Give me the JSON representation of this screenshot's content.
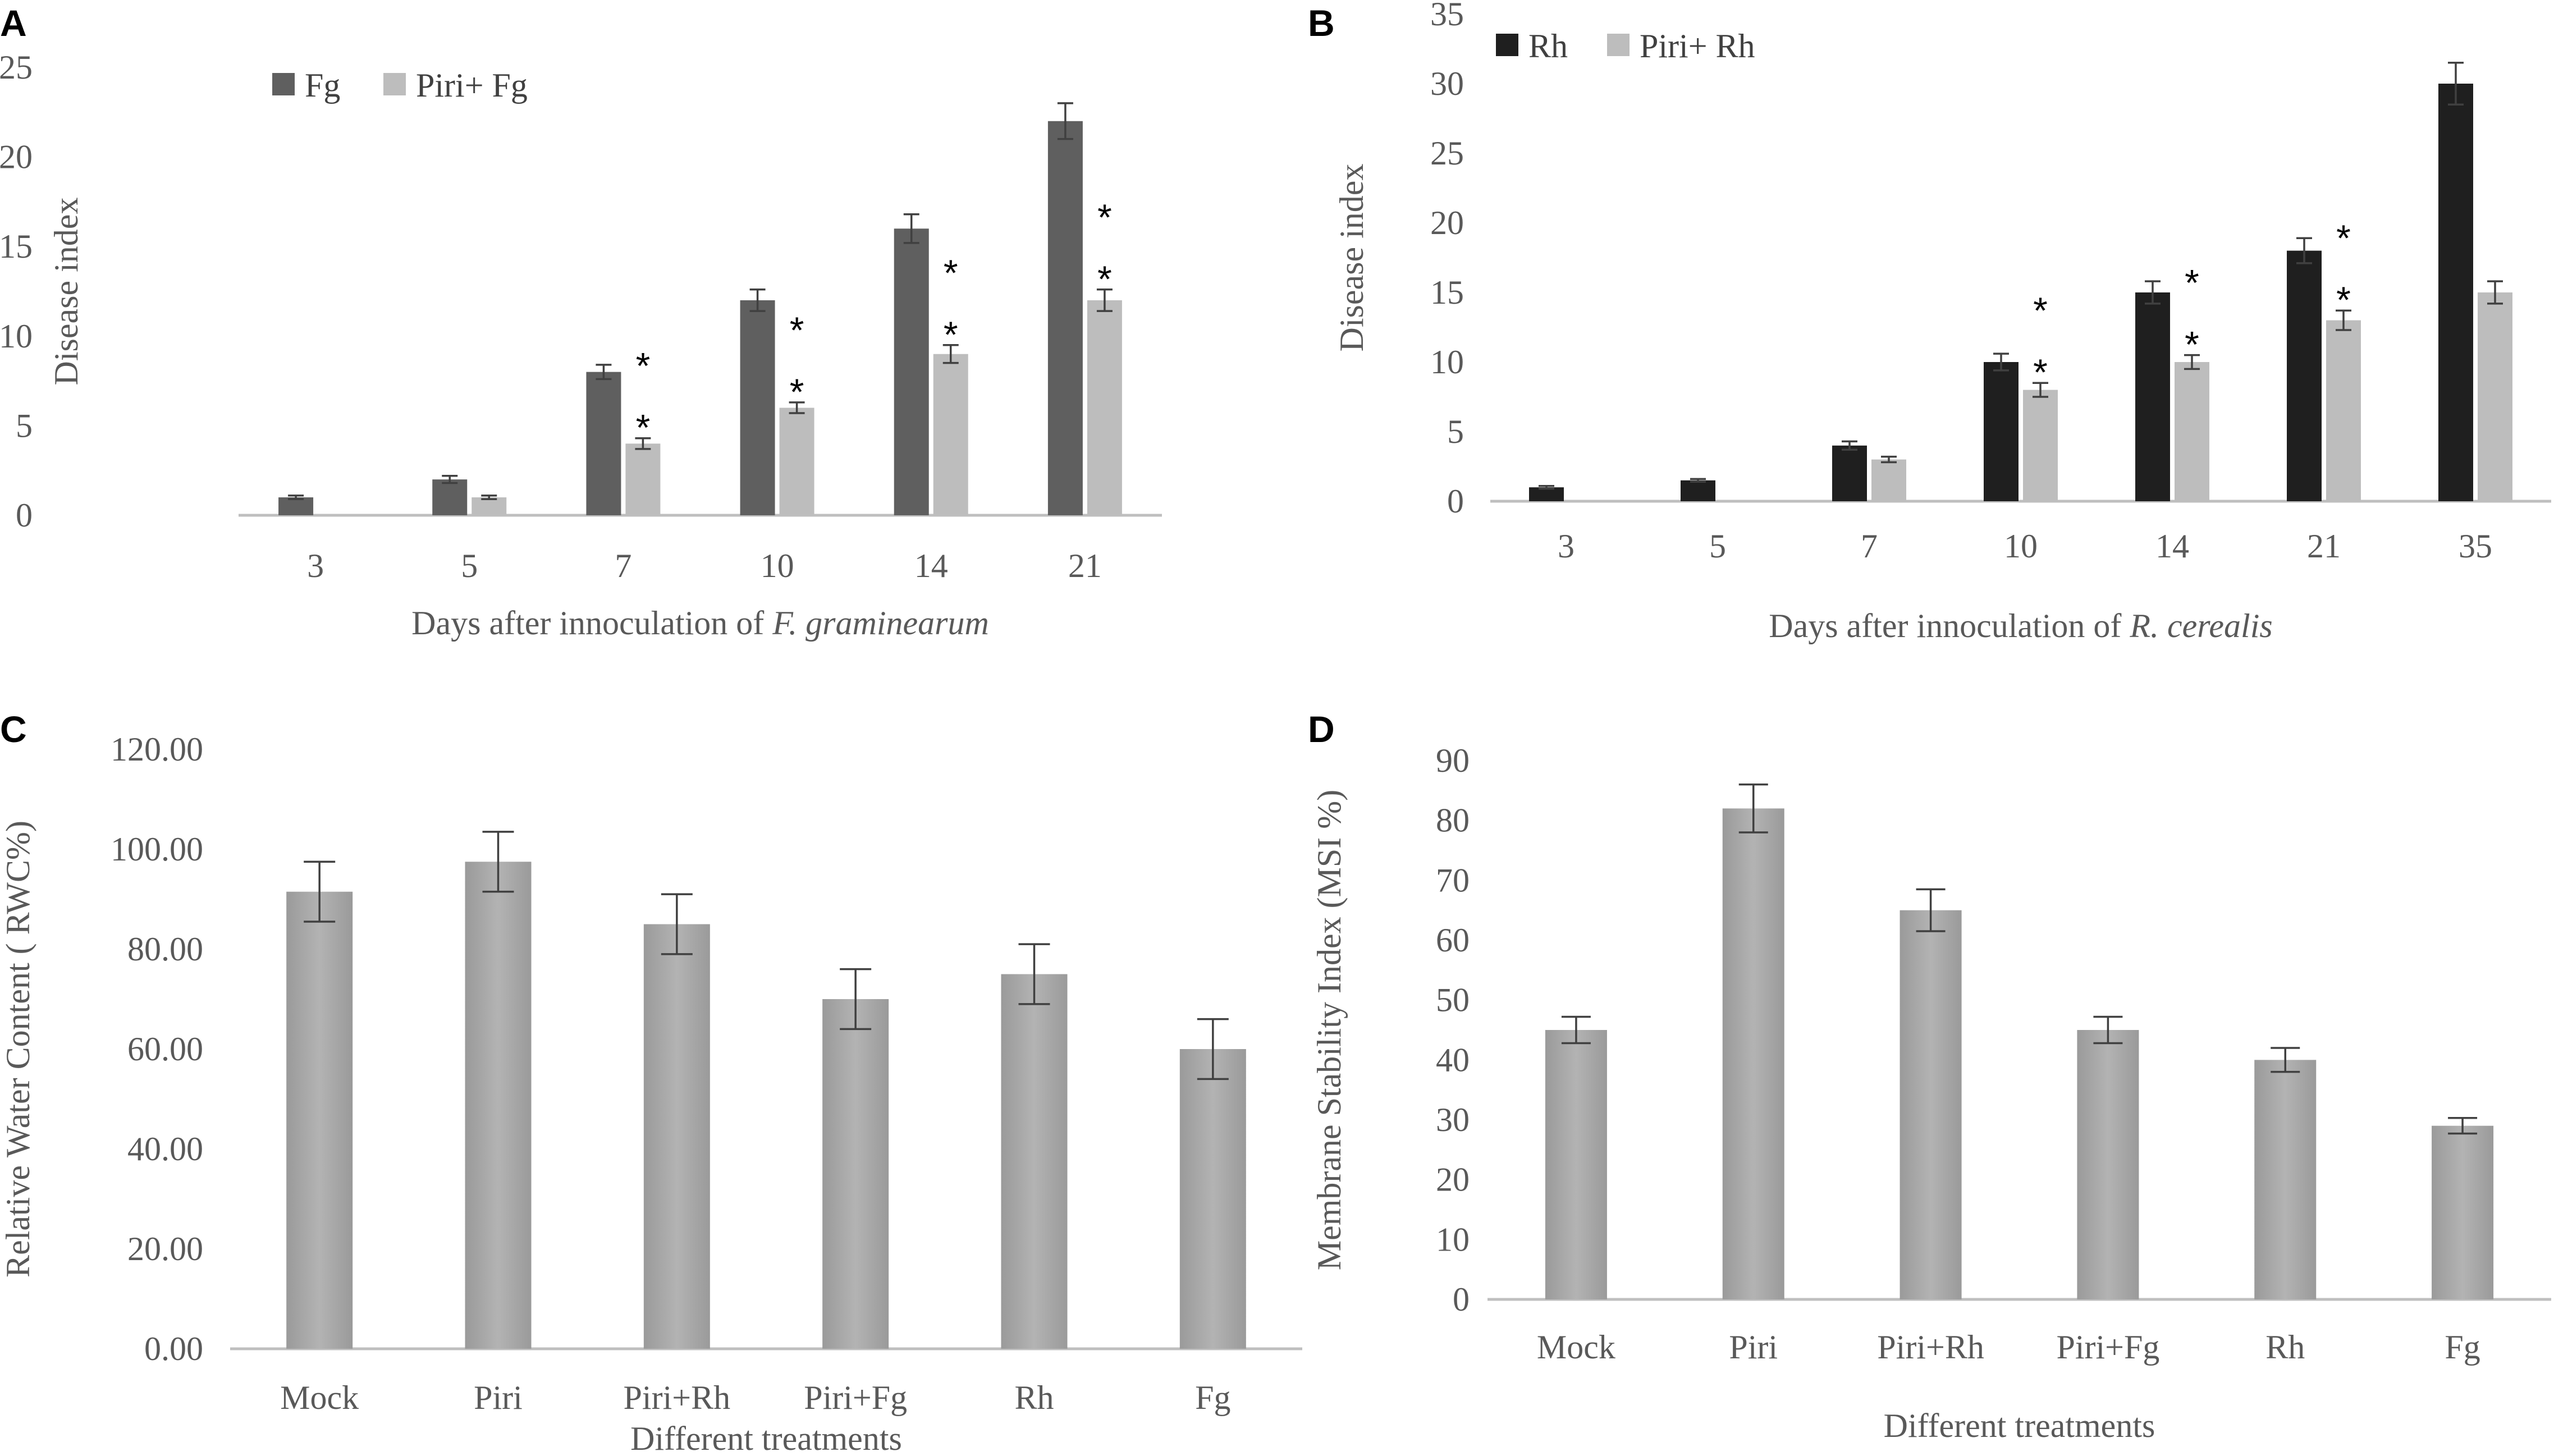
{
  "chart_data": [
    {
      "panel": "A",
      "type": "bar",
      "title": "",
      "xlabel": "Days after innoculation of ",
      "xlabel_italic": "F. graminearum",
      "ylabel": "Disease index",
      "ylim": [
        0,
        25
      ],
      "yticks": [
        "0",
        "5",
        "10",
        "15",
        "20",
        "25"
      ],
      "categories": [
        "3",
        "5",
        "7",
        "10",
        "14",
        "21"
      ],
      "series": [
        {
          "name": "Fg",
          "color": "#5f5f5f",
          "values": [
            1,
            2,
            8,
            12,
            16,
            22
          ],
          "errors": [
            0.1,
            0.2,
            0.4,
            0.6,
            0.8,
            1.0
          ]
        },
        {
          "name": "Piri+ Fg",
          "color": "#bdbdbd",
          "values": [
            0,
            1,
            4,
            6,
            9,
            12
          ],
          "errors": [
            0,
            0.1,
            0.3,
            0.3,
            0.5,
            0.6
          ]
        }
      ],
      "annotations": [
        {
          "category": "7",
          "marks": [
            "*",
            "*"
          ]
        },
        {
          "category": "10",
          "marks": [
            "*",
            "*"
          ]
        },
        {
          "category": "14",
          "marks": [
            "*",
            "*"
          ]
        },
        {
          "category": "21",
          "marks": [
            "*",
            "*"
          ]
        }
      ]
    },
    {
      "panel": "B",
      "type": "bar",
      "title": "",
      "xlabel": "Days after innoculation of ",
      "xlabel_italic": "R. cerealis",
      "ylabel": "Disease index",
      "ylim": [
        0,
        35
      ],
      "yticks": [
        "0",
        "5",
        "10",
        "15",
        "20",
        "25",
        "30",
        "35"
      ],
      "categories": [
        "3",
        "5",
        "7",
        "10",
        "14",
        "21",
        "35"
      ],
      "series": [
        {
          "name": "Rh",
          "color": "#1f1f1f",
          "values": [
            1,
            1.5,
            4,
            10,
            15,
            18,
            30
          ],
          "errors": [
            0.1,
            0.1,
            0.3,
            0.6,
            0.8,
            0.9,
            1.5
          ]
        },
        {
          "name": "Piri+ Rh",
          "color": "#bdbdbd",
          "values": [
            0,
            0,
            3,
            8,
            10,
            13,
            15
          ],
          "errors": [
            0,
            0,
            0.2,
            0.5,
            0.5,
            0.7,
            0.8
          ]
        }
      ],
      "annotations": [
        {
          "category": "10",
          "marks": [
            "*",
            "*"
          ]
        },
        {
          "category": "14",
          "marks": [
            "*",
            "*"
          ]
        },
        {
          "category": "21",
          "marks": [
            "*",
            "*"
          ]
        }
      ]
    },
    {
      "panel": "C",
      "type": "bar",
      "title": "",
      "xlabel": "Different treatments",
      "ylabel": "Relative Water Content ( RWC%)",
      "ylim": [
        0,
        120
      ],
      "yticks": [
        "0.00",
        "20.00",
        "40.00",
        "60.00",
        "80.00",
        "100.00",
        "120.00"
      ],
      "categories": [
        "Mock",
        "Piri",
        "Piri+Rh",
        "Piri+Fg",
        "Rh",
        "Fg"
      ],
      "series": [
        {
          "name": "RWC",
          "color": "#a6a6a6",
          "values": [
            91.5,
            97.5,
            85,
            70,
            75,
            60
          ],
          "errors": [
            6,
            6,
            6,
            6,
            6,
            6
          ]
        }
      ]
    },
    {
      "panel": "D",
      "type": "bar",
      "title": "",
      "xlabel": "Different treatments",
      "ylabel": "Membrane Stability Index (MSI %)",
      "ylim": [
        0,
        90
      ],
      "yticks": [
        "0",
        "10",
        "20",
        "30",
        "40",
        "50",
        "60",
        "70",
        "80",
        "90"
      ],
      "categories": [
        "Mock",
        "Piri",
        "Piri+Rh",
        "Piri+Fg",
        "Rh",
        "Fg"
      ],
      "series": [
        {
          "name": "MSI",
          "color": "#a6a6a6",
          "values": [
            45,
            82,
            65,
            45,
            40,
            29
          ],
          "errors": [
            2.2,
            4,
            3.5,
            2.2,
            2,
            1.3
          ]
        }
      ]
    }
  ]
}
